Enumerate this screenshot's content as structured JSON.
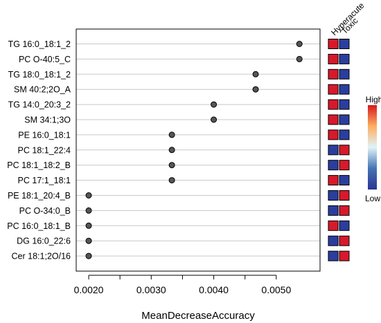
{
  "chart_data": {
    "type": "scatter",
    "title": "",
    "xlabel": "MeanDecreaseAccuracy",
    "ylabel": "",
    "xlim": [
      0.0018,
      0.0057
    ],
    "x_ticks": [
      "0.0020",
      "0.0030",
      "0.0040",
      "0.0050"
    ],
    "grid": "horizontal",
    "categories": [
      "TG 16:0_18:1_2",
      "PC O-40:5_C",
      "TG 18:0_18:1_2",
      "SM 40:2;2O_A",
      "TG 14:0_20:3_2",
      "SM 34:1;3O",
      "PE 16:0_18:1",
      "PC 18:1_22:4",
      "PC 18:1_18:2_B",
      "PC 17:1_18:1",
      "PE 18:1_20:4_B",
      "PC O-34:0_B",
      "PC 16:0_18:1_B",
      "DG 16:0_22:6",
      "Cer 18:1;2O/16"
    ],
    "values": [
      0.00537,
      0.00537,
      0.00467,
      0.00467,
      0.004,
      0.004,
      0.00333,
      0.00333,
      0.00333,
      0.00333,
      0.002,
      0.002,
      0.002,
      0.002,
      0.002
    ],
    "heatmap": {
      "columns": [
        "Hyperacute",
        "Toxic"
      ],
      "levels": [
        [
          "High",
          "Low"
        ],
        [
          "High",
          "Low"
        ],
        [
          "High",
          "Low"
        ],
        [
          "High",
          "Low"
        ],
        [
          "High",
          "Low"
        ],
        [
          "High",
          "Low"
        ],
        [
          "High",
          "Low"
        ],
        [
          "Low",
          "High"
        ],
        [
          "Low",
          "High"
        ],
        [
          "High",
          "Low"
        ],
        [
          "Low",
          "High"
        ],
        [
          "Low",
          "High"
        ],
        [
          "High",
          "Low"
        ],
        [
          "Low",
          "High"
        ],
        [
          "Low",
          "High"
        ]
      ]
    },
    "legend": {
      "high_label": "High",
      "low_label": "Low",
      "placement": "right",
      "gradient": [
        "#d7191c",
        "#fdae61",
        "#e0f3f8",
        "#4575b4",
        "#2c3494"
      ]
    },
    "colors": {
      "high": "#d7192b",
      "low": "#2b3e9e",
      "point": "#555555",
      "grid": "#c8c8c8"
    }
  }
}
